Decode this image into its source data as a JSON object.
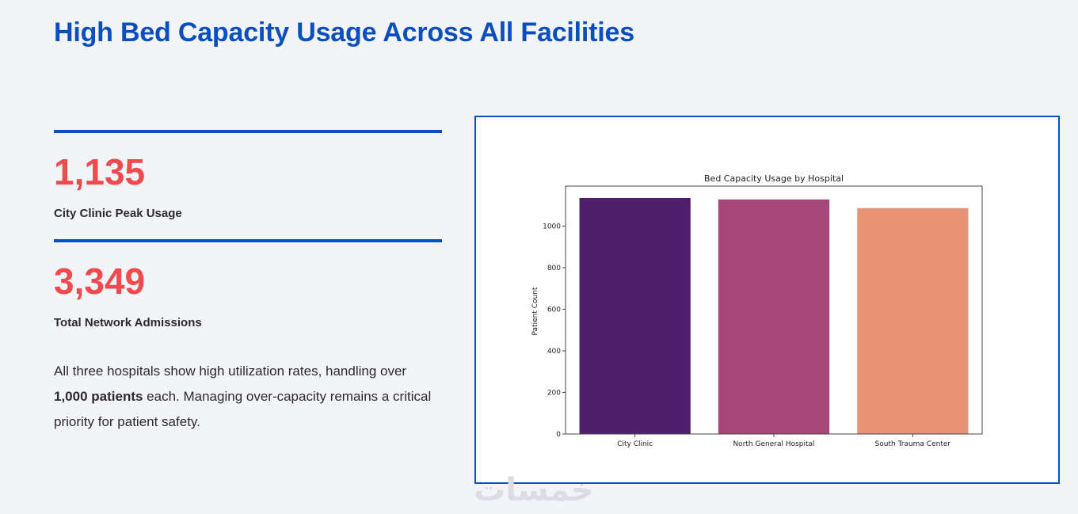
{
  "page": {
    "title": "High Bed Capacity Usage Across All Facilities"
  },
  "stats": [
    {
      "value": "1,135",
      "label": "City Clinic Peak Usage"
    },
    {
      "value": "3,349",
      "label": "Total Network Admissions"
    }
  ],
  "description": {
    "part1": "All three hospitals show high utilization rates, handling over ",
    "bold": "1,000 patients",
    "part2": " each. Managing over-capacity remains a critical priority for patient safety."
  },
  "watermark": "خمسات",
  "colors": {
    "accent": "#0a4fc0",
    "stat_value": "#f04a4f"
  },
  "chart_data": {
    "type": "bar",
    "title": "Bed Capacity Usage by Hospital",
    "xlabel": "",
    "ylabel": "Patient Count",
    "categories": [
      "City Clinic",
      "North General Hospital",
      "South Trauma Center"
    ],
    "values": [
      1135,
      1128,
      1086
    ],
    "colors": [
      "#501f6c",
      "#a64779",
      "#e89376"
    ],
    "ylim": [
      0,
      1192
    ],
    "yticks": [
      0,
      200,
      400,
      600,
      800,
      1000
    ],
    "grid": false,
    "legend": "none"
  }
}
